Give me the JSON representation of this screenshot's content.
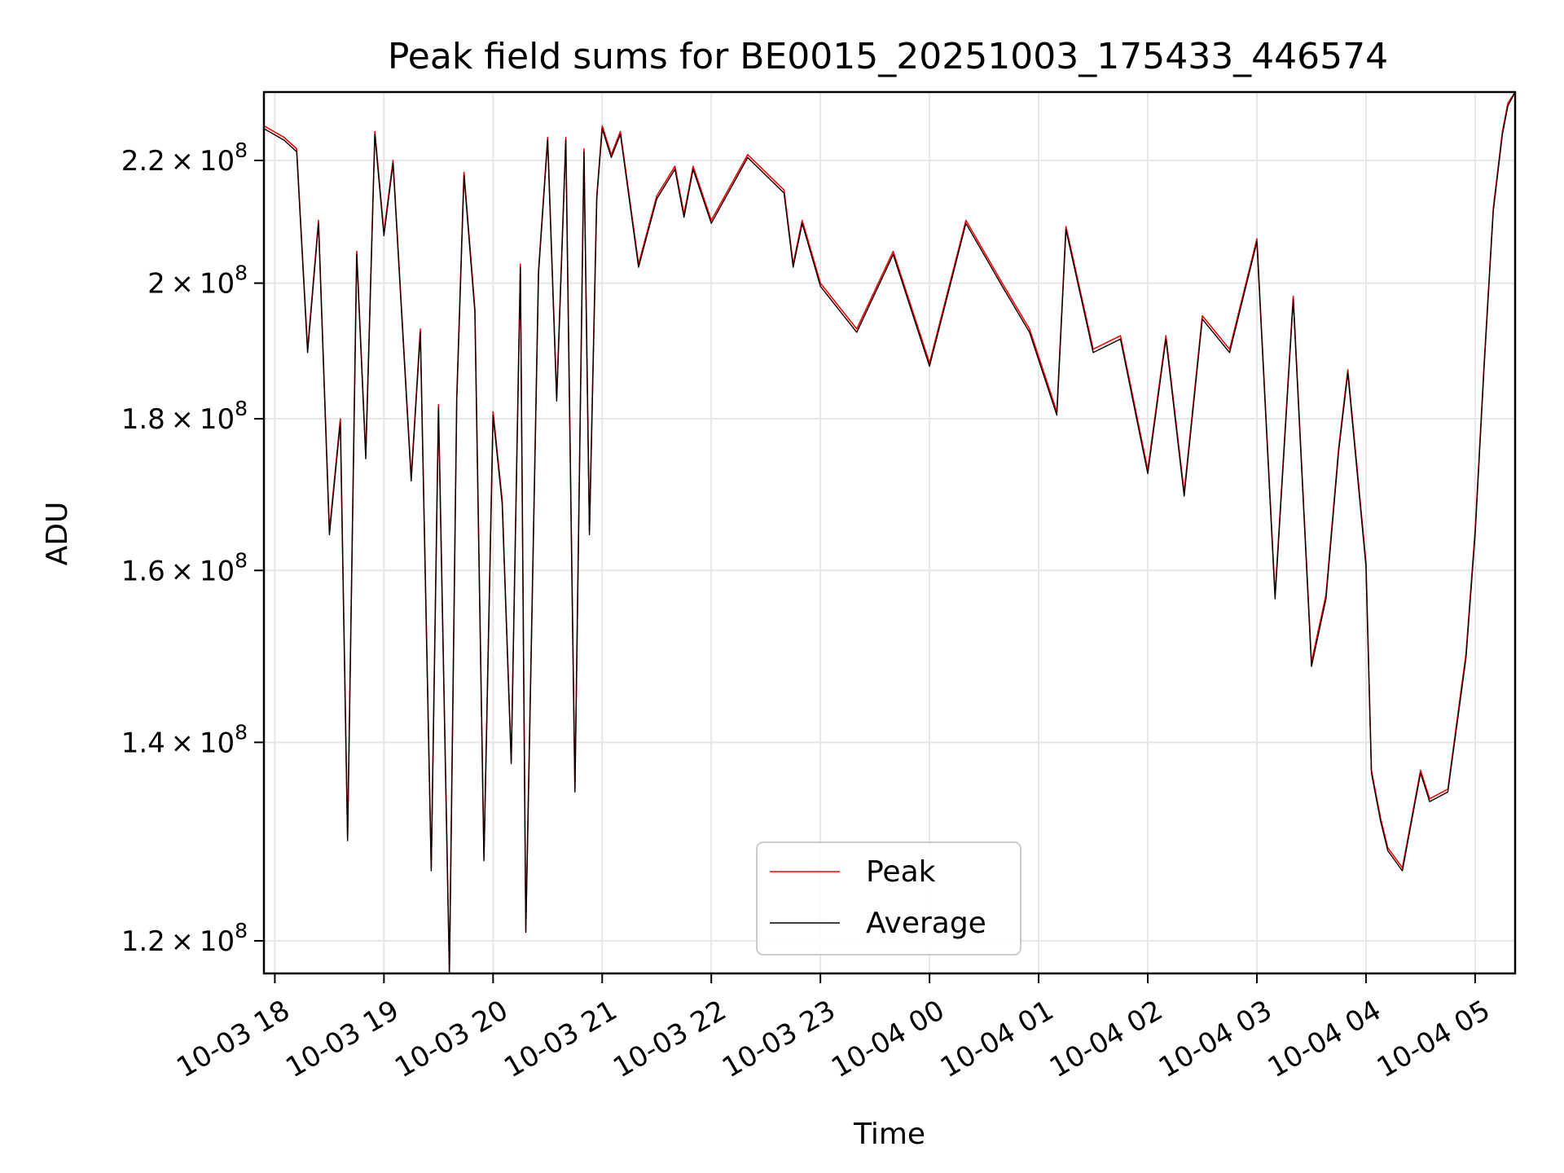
{
  "chart_data": {
    "type": "line",
    "title": "Peak field sums for BE0015_20251003_175433_446574",
    "xlabel": "Time",
    "ylabel": "ADU",
    "y_scale": "log",
    "grid": true,
    "legend_position": "bottom-center",
    "x_range": [
      "2025-10-03 17:54",
      "2025-10-04 05:22"
    ],
    "ylim": [
      117000000,
      232000000
    ],
    "x_ticks": [
      "10-03 18",
      "10-03 19",
      "10-03 20",
      "10-03 21",
      "10-03 22",
      "10-03 23",
      "10-04 00",
      "10-04 01",
      "10-04 02",
      "10-04 03",
      "10-04 04",
      "10-04 05"
    ],
    "y_ticks": [
      {
        "value": 120000000,
        "mantissa": "1.2",
        "base": "10",
        "exp": "8"
      },
      {
        "value": 140000000,
        "mantissa": "1.4",
        "base": "10",
        "exp": "8"
      },
      {
        "value": 160000000,
        "mantissa": "1.6",
        "base": "10",
        "exp": "8"
      },
      {
        "value": 180000000,
        "mantissa": "1.8",
        "base": "10",
        "exp": "8"
      },
      {
        "value": 200000000,
        "mantissa": "2",
        "base": "10",
        "exp": "8"
      },
      {
        "value": 220000000,
        "mantissa": "2.2",
        "base": "10",
        "exp": "8"
      }
    ],
    "series": [
      {
        "name": "Peak",
        "color": "#ff0000",
        "x": [
          "2025-10-03 17:54",
          "2025-10-03 18:05",
          "2025-10-03 18:12",
          "2025-10-03 18:18",
          "2025-10-03 18:24",
          "2025-10-03 18:30",
          "2025-10-03 18:36",
          "2025-10-03 18:40",
          "2025-10-03 18:45",
          "2025-10-03 18:50",
          "2025-10-03 18:55",
          "2025-10-03 19:00",
          "2025-10-03 19:05",
          "2025-10-03 19:15",
          "2025-10-03 19:20",
          "2025-10-03 19:26",
          "2025-10-03 19:30",
          "2025-10-03 19:36",
          "2025-10-03 19:40",
          "2025-10-03 19:44",
          "2025-10-03 19:50",
          "2025-10-03 19:55",
          "2025-10-03 20:00",
          "2025-10-03 20:05",
          "2025-10-03 20:10",
          "2025-10-03 20:15",
          "2025-10-03 20:18",
          "2025-10-03 20:25",
          "2025-10-03 20:30",
          "2025-10-03 20:35",
          "2025-10-03 20:40",
          "2025-10-03 20:45",
          "2025-10-03 20:50",
          "2025-10-03 20:53",
          "2025-10-03 20:57",
          "2025-10-03 21:00",
          "2025-10-03 21:05",
          "2025-10-03 21:10",
          "2025-10-03 21:20",
          "2025-10-03 21:30",
          "2025-10-03 21:40",
          "2025-10-03 21:45",
          "2025-10-03 21:50",
          "2025-10-03 22:00",
          "2025-10-03 22:20",
          "2025-10-03 22:40",
          "2025-10-03 22:45",
          "2025-10-03 22:50",
          "2025-10-03 23:00",
          "2025-10-03 23:20",
          "2025-10-03 23:40",
          "2025-10-04 00:00",
          "2025-10-04 00:20",
          "2025-10-04 00:40",
          "2025-10-04 00:55",
          "2025-10-04 01:10",
          "2025-10-04 01:15",
          "2025-10-04 01:30",
          "2025-10-04 01:45",
          "2025-10-04 02:00",
          "2025-10-04 02:10",
          "2025-10-04 02:20",
          "2025-10-04 02:30",
          "2025-10-04 02:45",
          "2025-10-04 03:00",
          "2025-10-04 03:10",
          "2025-10-04 03:20",
          "2025-10-04 03:30",
          "2025-10-04 03:38",
          "2025-10-04 03:45",
          "2025-10-04 03:50",
          "2025-10-04 04:00",
          "2025-10-04 04:03",
          "2025-10-04 04:08",
          "2025-10-04 04:12",
          "2025-10-04 04:20",
          "2025-10-04 04:30",
          "2025-10-04 04:35",
          "2025-10-04 04:45",
          "2025-10-04 04:55",
          "2025-10-04 05:00",
          "2025-10-04 05:05",
          "2025-10-04 05:10",
          "2025-10-04 05:15",
          "2025-10-04 05:18",
          "2025-10-04 05:22"
        ],
        "values": [
          226000000,
          224000000,
          222000000,
          190000000,
          210000000,
          165000000,
          180000000,
          130000000,
          205000000,
          175000000,
          225000000,
          208000000,
          220000000,
          172000000,
          193000000,
          127000000,
          182000000,
          117000000,
          183000000,
          218000000,
          196000000,
          128000000,
          181000000,
          169000000,
          138000000,
          203000000,
          121000000,
          202000000,
          224000000,
          183000000,
          224000000,
          135000000,
          222000000,
          165000000,
          214000000,
          226000000,
          221000000,
          225000000,
          203000000,
          214000000,
          219000000,
          211000000,
          219000000,
          210000000,
          221000000,
          215000000,
          203000000,
          210000000,
          200000000,
          193000000,
          205000000,
          188000000,
          210000000,
          200000000,
          193000000,
          181000000,
          209000000,
          190000000,
          192000000,
          173000000,
          192000000,
          170000000,
          195000000,
          190000000,
          207000000,
          157000000,
          198000000,
          149000000,
          157000000,
          176000000,
          187000000,
          161000000,
          137000000,
          132000000,
          129000000,
          127000000,
          137000000,
          134000000,
          135000000,
          150000000,
          165000000,
          188000000,
          212000000,
          225000000,
          230000000,
          232000000
        ]
      },
      {
        "name": "Average",
        "color": "#000000",
        "x": [
          "2025-10-03 17:54",
          "2025-10-03 18:05",
          "2025-10-03 18:12",
          "2025-10-03 18:18",
          "2025-10-03 18:24",
          "2025-10-03 18:30",
          "2025-10-03 18:36",
          "2025-10-03 18:40",
          "2025-10-03 18:45",
          "2025-10-03 18:50",
          "2025-10-03 18:55",
          "2025-10-03 19:00",
          "2025-10-03 19:05",
          "2025-10-03 19:15",
          "2025-10-03 19:20",
          "2025-10-03 19:26",
          "2025-10-03 19:30",
          "2025-10-03 19:36",
          "2025-10-03 19:40",
          "2025-10-03 19:44",
          "2025-10-03 19:50",
          "2025-10-03 19:55",
          "2025-10-03 20:00",
          "2025-10-03 20:05",
          "2025-10-03 20:10",
          "2025-10-03 20:15",
          "2025-10-03 20:18",
          "2025-10-03 20:25",
          "2025-10-03 20:30",
          "2025-10-03 20:35",
          "2025-10-03 20:40",
          "2025-10-03 20:45",
          "2025-10-03 20:50",
          "2025-10-03 20:53",
          "2025-10-03 20:57",
          "2025-10-03 21:00",
          "2025-10-03 21:05",
          "2025-10-03 21:10",
          "2025-10-03 21:20",
          "2025-10-03 21:30",
          "2025-10-03 21:40",
          "2025-10-03 21:45",
          "2025-10-03 21:50",
          "2025-10-03 22:00",
          "2025-10-03 22:20",
          "2025-10-03 22:40",
          "2025-10-03 22:45",
          "2025-10-03 22:50",
          "2025-10-03 23:00",
          "2025-10-03 23:20",
          "2025-10-03 23:40",
          "2025-10-04 00:00",
          "2025-10-04 00:20",
          "2025-10-04 00:40",
          "2025-10-04 00:55",
          "2025-10-04 01:10",
          "2025-10-04 01:15",
          "2025-10-04 01:30",
          "2025-10-04 01:45",
          "2025-10-04 02:00",
          "2025-10-04 02:10",
          "2025-10-04 02:20",
          "2025-10-04 02:30",
          "2025-10-04 02:45",
          "2025-10-04 03:00",
          "2025-10-04 03:10",
          "2025-10-04 03:20",
          "2025-10-04 03:30",
          "2025-10-04 03:38",
          "2025-10-04 03:45",
          "2025-10-04 03:50",
          "2025-10-04 04:00",
          "2025-10-04 04:03",
          "2025-10-04 04:08",
          "2025-10-04 04:12",
          "2025-10-04 04:20",
          "2025-10-04 04:30",
          "2025-10-04 04:35",
          "2025-10-04 04:45",
          "2025-10-04 04:55",
          "2025-10-04 05:00",
          "2025-10-04 05:05",
          "2025-10-04 05:10",
          "2025-10-04 05:15",
          "2025-10-04 05:18",
          "2025-10-04 05:22"
        ],
        "values": [
          225500000,
          223500000,
          221500000,
          189500000,
          209500000,
          164500000,
          179500000,
          129700000,
          204500000,
          174500000,
          224500000,
          207500000,
          219500000,
          171500000,
          192500000,
          126700000,
          181500000,
          117000000,
          182500000,
          217500000,
          195500000,
          127700000,
          180500000,
          168500000,
          137700000,
          202500000,
          120800000,
          201500000,
          223500000,
          182500000,
          223500000,
          134700000,
          221500000,
          164500000,
          213500000,
          225500000,
          220500000,
          224500000,
          202500000,
          213500000,
          218500000,
          210500000,
          218500000,
          209500000,
          220500000,
          214500000,
          202500000,
          209500000,
          199500000,
          192500000,
          204500000,
          187500000,
          209500000,
          199500000,
          192500000,
          180500000,
          208500000,
          189500000,
          191500000,
          172500000,
          191500000,
          169500000,
          194500000,
          189500000,
          206500000,
          156500000,
          197500000,
          148500000,
          156500000,
          175500000,
          186500000,
          160500000,
          136700000,
          131700000,
          128700000,
          126700000,
          136700000,
          133700000,
          134700000,
          149500000,
          164500000,
          187500000,
          211500000,
          224500000,
          229500000,
          232000000
        ]
      }
    ]
  }
}
